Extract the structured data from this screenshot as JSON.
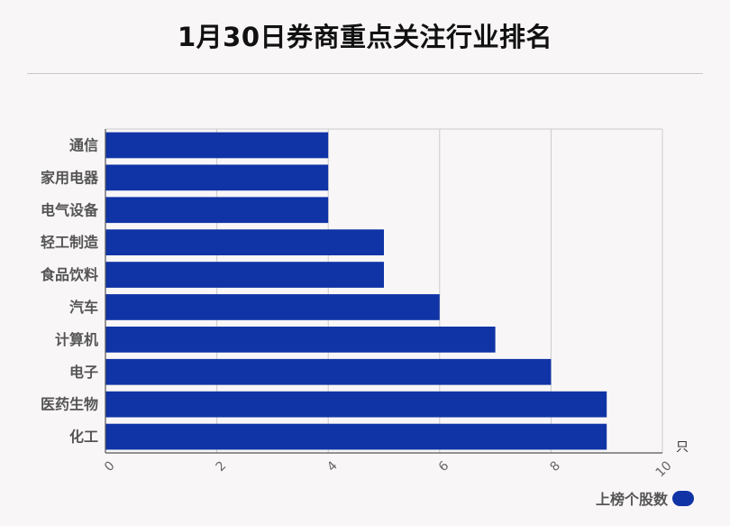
{
  "title": "1月30日券商重点关注行业排名",
  "colors": {
    "bar": "#1034a6",
    "grid": "#cccccc",
    "axis": "#555555"
  },
  "chart_data": {
    "type": "bar",
    "orientation": "horizontal",
    "title": "1月30日券商重点关注行业排名",
    "categories": [
      "通信",
      "家用电器",
      "电气设备",
      "轻工制造",
      "食品饮料",
      "汽车",
      "计算机",
      "电子",
      "医药生物",
      "化工"
    ],
    "series": [
      {
        "name": "上榜个股数",
        "values": [
          4,
          4,
          4,
          5,
          5,
          6,
          7,
          8,
          9,
          9
        ]
      }
    ],
    "xlim": [
      0,
      10
    ],
    "xticks": [
      "0",
      "2",
      "4",
      "6",
      "8",
      "10"
    ],
    "xunit": "只",
    "grid": true,
    "legend": "bottom-right"
  }
}
